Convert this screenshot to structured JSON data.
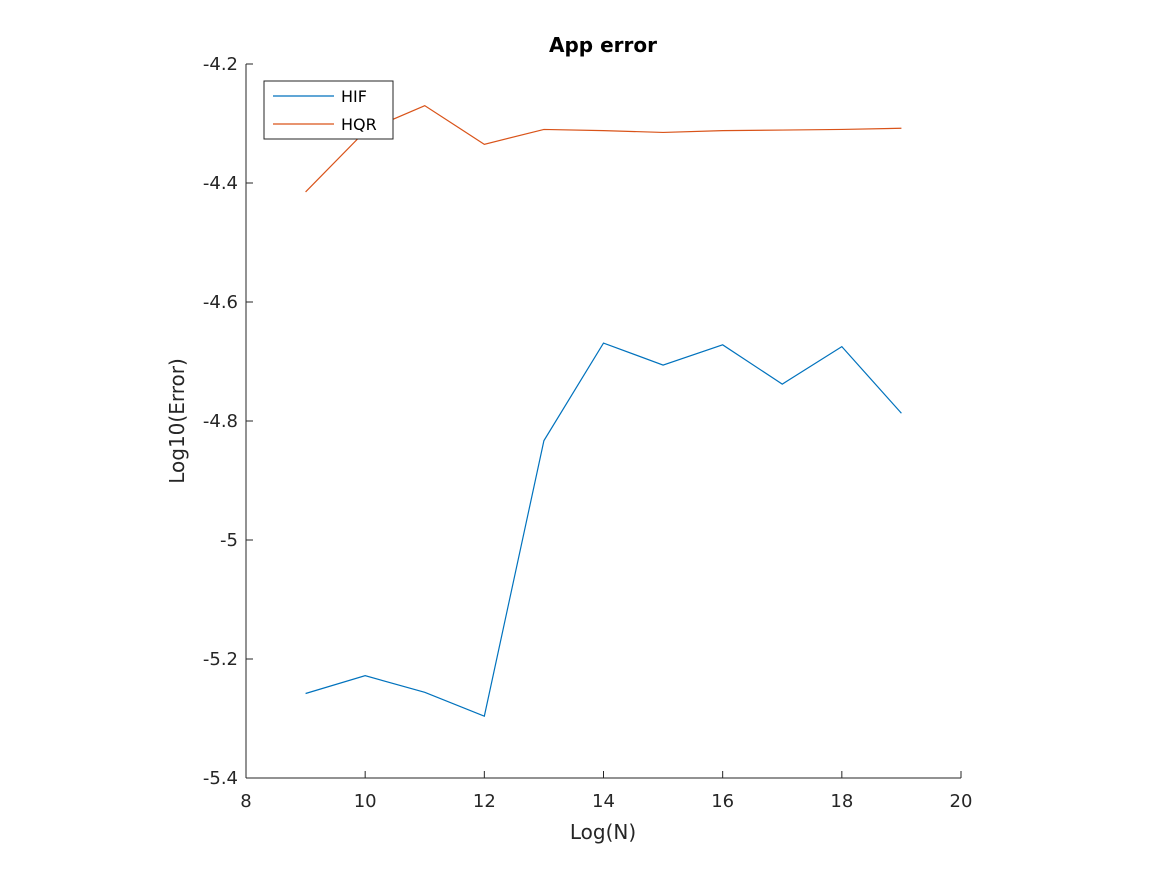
{
  "chart_data": {
    "type": "line",
    "title": "App error",
    "xlabel": "Log(N)",
    "ylabel": "Log10(Error)",
    "xlim": [
      8,
      20
    ],
    "ylim": [
      -5.4,
      -4.2
    ],
    "xticks": [
      8,
      10,
      12,
      14,
      16,
      18,
      20
    ],
    "yticks": [
      -5.4,
      -5.2,
      -5,
      -4.8,
      -4.6,
      -4.4,
      -4.2
    ],
    "xtick_labels": [
      "8",
      "10",
      "12",
      "14",
      "16",
      "18",
      "20"
    ],
    "ytick_labels": [
      "-5.4",
      "-5.2",
      "-5",
      "-4.8",
      "-4.6",
      "-4.4",
      "-4.2"
    ],
    "grid": false,
    "legend_position": "top-left",
    "x": [
      9,
      10,
      11,
      12,
      13,
      14,
      15,
      16,
      17,
      18,
      19
    ],
    "series": [
      {
        "name": "HIF",
        "color": "#0072BD",
        "values": [
          -5.258,
          -5.228,
          -5.256,
          -5.296,
          -4.833,
          -4.669,
          -4.706,
          -4.672,
          -4.738,
          -4.675,
          -4.787
        ]
      },
      {
        "name": "HQR",
        "color": "#D95319",
        "values": [
          -4.415,
          -4.313,
          -4.27,
          -4.335,
          -4.31,
          -4.312,
          -4.315,
          -4.312,
          -4.311,
          -4.31,
          -4.308
        ]
      }
    ]
  }
}
